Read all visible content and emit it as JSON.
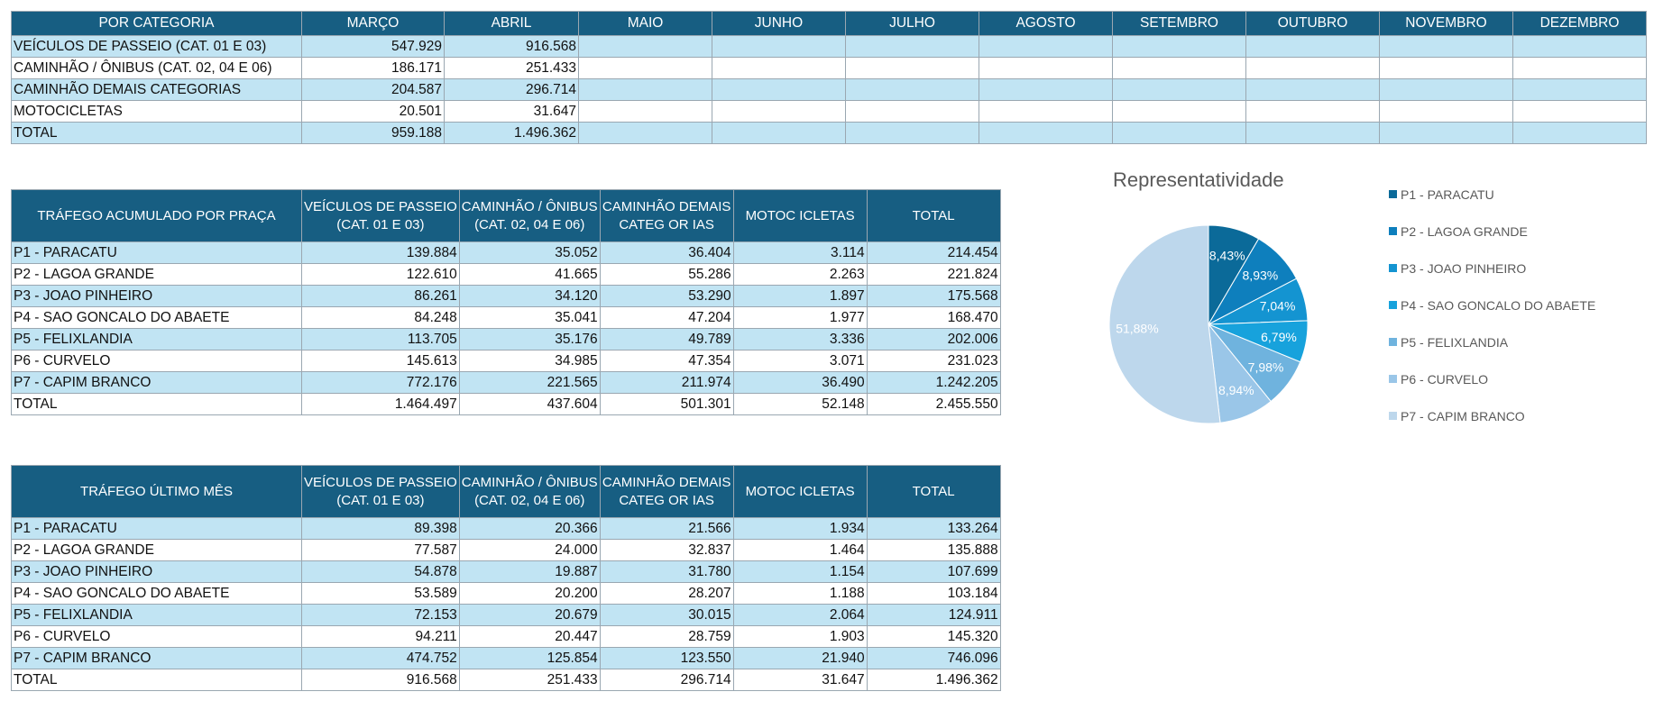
{
  "monthly": {
    "headers": [
      "POR CATEGORIA",
      "MARÇO",
      "ABRIL",
      "MAIO",
      "JUNHO",
      "JULHO",
      "AGOSTO",
      "SETEMBRO",
      "OUTUBRO",
      "NOVEMBRO",
      "DEZEMBRO"
    ],
    "rows": [
      {
        "label": "VEÍCULOS DE PASSEIO (CAT. 01 E 03)",
        "values": [
          "547.929",
          "916.568",
          "",
          "",
          "",
          "",
          "",
          "",
          "",
          ""
        ]
      },
      {
        "label": "CAMINHÃO / ÔNIBUS (CAT. 02, 04 E 06)",
        "values": [
          "186.171",
          "251.433",
          "",
          "",
          "",
          "",
          "",
          "",
          "",
          ""
        ]
      },
      {
        "label": "CAMINHÃO DEMAIS CATEGORIAS",
        "values": [
          "204.587",
          "296.714",
          "",
          "",
          "",
          "",
          "",
          "",
          "",
          ""
        ]
      },
      {
        "label": "MOTOCICLETAS",
        "values": [
          "20.501",
          "31.647",
          "",
          "",
          "",
          "",
          "",
          "",
          "",
          ""
        ]
      },
      {
        "label": "TOTAL",
        "values": [
          "959.188",
          "1.496.362",
          "",
          "",
          "",
          "",
          "",
          "",
          "",
          ""
        ]
      }
    ]
  },
  "accumulated": {
    "title": "TRÁFEGO ACUMULADO POR PRAÇA",
    "col_headers": [
      [
        "VEÍCULOS DE PASSEIO",
        "(CAT. 01 E 03)"
      ],
      [
        "CAMINHÃO / ÔNIBUS",
        "(CAT. 02, 04 E 06)"
      ],
      [
        "CAMINHÃO DEMAIS",
        "CATEG OR IAS"
      ],
      [
        "MOTOC ICLETAS",
        ""
      ],
      [
        "TOTAL",
        ""
      ]
    ],
    "rows": [
      {
        "label": "P1 - PARACATU",
        "values": [
          "139.884",
          "35.052",
          "36.404",
          "3.114",
          "214.454"
        ]
      },
      {
        "label": "P2 - LAGOA GRANDE",
        "values": [
          "122.610",
          "41.665",
          "55.286",
          "2.263",
          "221.824"
        ]
      },
      {
        "label": "P3 - JOAO PINHEIRO",
        "values": [
          "86.261",
          "34.120",
          "53.290",
          "1.897",
          "175.568"
        ]
      },
      {
        "label": "P4 - SAO GONCALO DO ABAETE",
        "values": [
          "84.248",
          "35.041",
          "47.204",
          "1.977",
          "168.470"
        ]
      },
      {
        "label": "P5 - FELIXLANDIA",
        "values": [
          "113.705",
          "35.176",
          "49.789",
          "3.336",
          "202.006"
        ]
      },
      {
        "label": "P6 - CURVELO",
        "values": [
          "145.613",
          "34.985",
          "47.354",
          "3.071",
          "231.023"
        ]
      },
      {
        "label": "P7 - CAPIM BRANCO",
        "values": [
          "772.176",
          "221.565",
          "211.974",
          "36.490",
          "1.242.205"
        ]
      },
      {
        "label": "TOTAL",
        "values": [
          "1.464.497",
          "437.604",
          "501.301",
          "52.148",
          "2.455.550"
        ]
      }
    ]
  },
  "last_month": {
    "title": "TRÁFEGO ÚLTIMO MÊS",
    "col_headers": [
      [
        "VEÍCULOS DE PASSEIO",
        "(CAT. 01 E 03)"
      ],
      [
        "CAMINHÃO / ÔNIBUS",
        "(CAT. 02, 04 E 06)"
      ],
      [
        "CAMINHÃO DEMAIS",
        "CATEG OR IAS"
      ],
      [
        "MOTOC ICLETAS",
        ""
      ],
      [
        "TOTAL",
        ""
      ]
    ],
    "rows": [
      {
        "label": "P1 - PARACATU",
        "values": [
          "89.398",
          "20.366",
          "21.566",
          "1.934",
          "133.264"
        ]
      },
      {
        "label": "P2 - LAGOA GRANDE",
        "values": [
          "77.587",
          "24.000",
          "32.837",
          "1.464",
          "135.888"
        ]
      },
      {
        "label": "P3 - JOAO PINHEIRO",
        "values": [
          "54.878",
          "19.887",
          "31.780",
          "1.154",
          "107.699"
        ]
      },
      {
        "label": "P4 - SAO GONCALO DO ABAETE",
        "values": [
          "53.589",
          "20.200",
          "28.207",
          "1.188",
          "103.184"
        ]
      },
      {
        "label": "P5 - FELIXLANDIA",
        "values": [
          "72.153",
          "20.679",
          "30.015",
          "2.064",
          "124.911"
        ]
      },
      {
        "label": "P6 - CURVELO",
        "values": [
          "94.211",
          "20.447",
          "28.759",
          "1.903",
          "145.320"
        ]
      },
      {
        "label": "P7 - CAPIM BRANCO",
        "values": [
          "474.752",
          "125.854",
          "123.550",
          "21.940",
          "746.096"
        ]
      },
      {
        "label": "TOTAL",
        "values": [
          "916.568",
          "251.433",
          "296.714",
          "31.647",
          "1.496.362"
        ]
      }
    ]
  },
  "chart_data": {
    "type": "pie",
    "title": "Representatividade",
    "categories": [
      "P1 - PARACATU",
      "P2 - LAGOA GRANDE",
      "P3 - JOAO PINHEIRO",
      "P4 - SAO GONCALO DO ABAETE",
      "P5 - FELIXLANDIA",
      "P6 - CURVELO",
      "P7 - CAPIM BRANCO"
    ],
    "values": [
      8.43,
      8.93,
      7.04,
      6.79,
      7.98,
      8.94,
      51.88
    ],
    "labels": [
      "8,43%",
      "8,93%",
      "7,04%",
      "6,79%",
      "7,98%",
      "8,94%",
      "51,88%"
    ],
    "colors": [
      "#0b6a99",
      "#0e7fbd",
      "#1494d1",
      "#17a2dc",
      "#6fb3de",
      "#9ac6e8",
      "#bdd7ec"
    ],
    "legend_position": "right"
  }
}
